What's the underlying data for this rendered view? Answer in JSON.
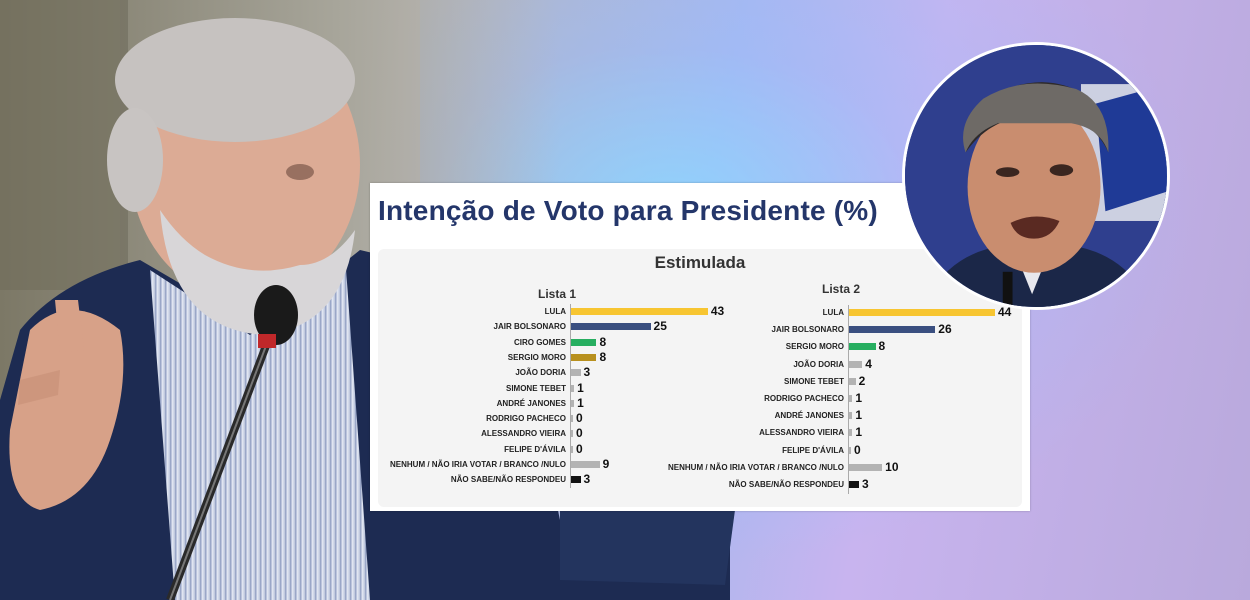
{
  "chart_data": {
    "type": "bar",
    "title": "Intenção de Voto para Presidente (%)",
    "subtitle": "Estimulada",
    "panels": [
      {
        "name": "Lista 1",
        "categories": [
          "LULA",
          "JAIR BOLSONARO",
          "CIRO GOMES",
          "SERGIO MORO",
          "JOÃO DORIA",
          "SIMONE TEBET",
          "ANDRÉ JANONES",
          "RODRIGO PACHECO",
          "ALESSANDRO VIEIRA",
          "FELIPE D'ÁVILA",
          "NENHUM / NÃO IRIA VOTAR / BRANCO /NULO",
          "NÃO SABE/NÃO RESPONDEU"
        ],
        "values": [
          43,
          25,
          8,
          8,
          3,
          1,
          1,
          0,
          0,
          0,
          9,
          3
        ],
        "colors": [
          "#f7c531",
          "#3a4f80",
          "#27ae60",
          "#b8901e",
          "#b3b3b3",
          "#b3b3b3",
          "#b3b3b3",
          "#b3b3b3",
          "#b3b3b3",
          "#b3b3b3",
          "#b3b3b3",
          "#111111"
        ]
      },
      {
        "name": "Lista 2",
        "categories": [
          "LULA",
          "JAIR BOLSONARO",
          "SERGIO MORO",
          "JOÃO DORIA",
          "SIMONE TEBET",
          "RODRIGO PACHECO",
          "ANDRÉ JANONES",
          "ALESSANDRO VIEIRA",
          "FELIPE D'ÁVILA",
          "NENHUM / NÃO IRIA VOTAR / BRANCO /NULO",
          "NÃO SABE/NÃO RESPONDEU"
        ],
        "values": [
          44,
          26,
          8,
          4,
          2,
          1,
          1,
          1,
          0,
          10,
          3
        ],
        "colors": [
          "#f7c531",
          "#3a4f80",
          "#27ae60",
          "#b3b3b3",
          "#b3b3b3",
          "#b3b3b3",
          "#b3b3b3",
          "#b3b3b3",
          "#b3b3b3",
          "#b3b3b3",
          "#111111"
        ]
      }
    ],
    "xlim": [
      0,
      44
    ],
    "grid": false
  }
}
